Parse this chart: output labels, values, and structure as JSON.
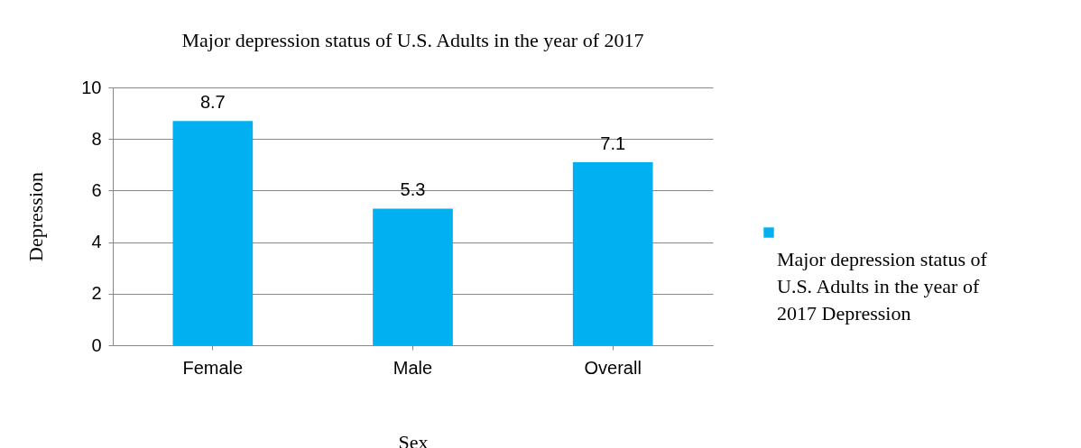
{
  "chart_data": {
    "type": "bar",
    "title": "Major depression status of U.S. Adults in the year of 2017",
    "xlabel": "Sex",
    "ylabel": "Depression",
    "categories": [
      "Female",
      "Male",
      "Overall"
    ],
    "series": [
      {
        "name": "Major depression status of U.S. Adults in the year of 2017 Depression",
        "color": "#00b0f0",
        "values": [
          8.7,
          5.3,
          7.1
        ]
      }
    ],
    "ylim": [
      0,
      10
    ],
    "yticks": [
      0,
      2,
      4,
      6,
      8,
      10
    ],
    "grid": "y",
    "legend": "right",
    "data_labels": true
  }
}
